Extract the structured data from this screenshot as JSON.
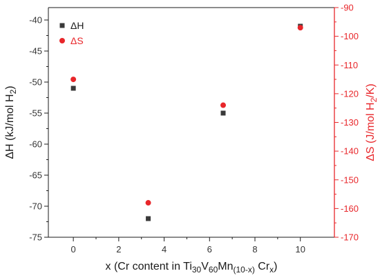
{
  "chart_data": {
    "type": "scatter",
    "x_axis": {
      "label": "x (Cr content in Ti30V60Mn(10-x) Crx)",
      "label_parts": [
        {
          "t": "x (Cr content in Ti"
        },
        {
          "t": "30",
          "sub": true
        },
        {
          "t": "V"
        },
        {
          "t": "60",
          "sub": true
        },
        {
          "t": "Mn"
        },
        {
          "t": "(10-x)",
          "sub": true
        },
        {
          "t": " Cr"
        },
        {
          "t": "x",
          "sub": true
        },
        {
          "t": ")"
        }
      ],
      "range": [
        -1.1,
        11.5
      ],
      "ticks": [
        0,
        2,
        4,
        6,
        8,
        10
      ],
      "tick_labels": [
        "0",
        "2",
        "4",
        "6",
        "8",
        "10"
      ]
    },
    "y_left_axis": {
      "label": "ΔH (kJ/mol H2)",
      "label_parts": [
        {
          "t": "ΔH (kJ/mol H"
        },
        {
          "t": "2",
          "sub": true
        },
        {
          "t": ")"
        }
      ],
      "range": [
        -75,
        -38
      ],
      "ticks": [
        -75,
        -70,
        -65,
        -60,
        -55,
        -50,
        -45,
        -40
      ],
      "tick_labels": [
        "-75",
        "-70",
        "-65",
        "-60",
        "-55",
        "-50",
        "-45",
        "-40"
      ],
      "color": "#1a1a1a"
    },
    "y_right_axis": {
      "label": "ΔS (J/mol H2/K)",
      "label_parts": [
        {
          "t": "ΔS (J/mol H"
        },
        {
          "t": "2",
          "sub": true
        },
        {
          "t": "/K)"
        }
      ],
      "range": [
        -170,
        -90
      ],
      "ticks": [
        -170,
        -160,
        -150,
        -140,
        -130,
        -120,
        -110,
        -100,
        -90
      ],
      "tick_labels": [
        "-170",
        "-160",
        "-150",
        "-140",
        "-130",
        "-120",
        "-110",
        "-100",
        "-90"
      ],
      "color": "#e8262a"
    },
    "series": [
      {
        "name": "ΔH",
        "axis": "left",
        "marker": "square",
        "color": "#3a3a3a",
        "x": [
          0,
          3.3,
          6.6,
          10
        ],
        "y": [
          -51,
          -72,
          -55,
          -41
        ]
      },
      {
        "name": "ΔS",
        "axis": "right",
        "marker": "circle",
        "color": "#e8262a",
        "x": [
          0,
          3.3,
          6.6,
          10
        ],
        "y": [
          -115,
          -158,
          -124,
          -97
        ]
      }
    ],
    "legend": {
      "position": "top-left",
      "entries": [
        "ΔH",
        "ΔS"
      ]
    },
    "grid": false
  }
}
